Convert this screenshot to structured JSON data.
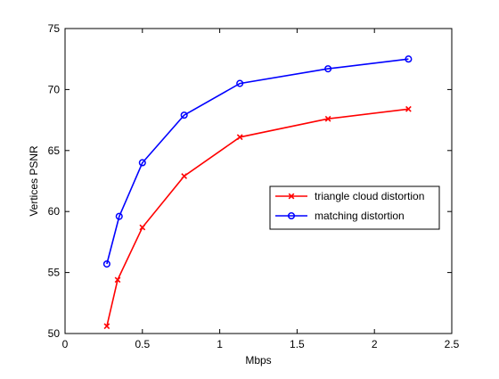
{
  "chart_data": {
    "type": "line",
    "title": "",
    "xlabel": "Mbps",
    "ylabel": "Vertices PSNR",
    "xlim": [
      0,
      2.5
    ],
    "ylim": [
      50,
      75
    ],
    "xticks": [
      0,
      0.5,
      1,
      1.5,
      2,
      2.5
    ],
    "xtick_labels": [
      "0",
      "0.5",
      "1",
      "1.5",
      "2",
      "2.5"
    ],
    "yticks": [
      50,
      55,
      60,
      65,
      70,
      75
    ],
    "ytick_labels": [
      "50",
      "55",
      "60",
      "65",
      "70",
      "75"
    ],
    "grid": false,
    "legend_position": "center-right",
    "series": [
      {
        "name": "triangle cloud distortion",
        "color": "#ff0000",
        "marker": "x",
        "x": [
          0.27,
          0.34,
          0.5,
          0.77,
          1.13,
          1.7,
          2.22
        ],
        "y": [
          50.6,
          54.4,
          58.7,
          62.9,
          66.1,
          67.6,
          68.4
        ]
      },
      {
        "name": "matching distortion",
        "color": "#0000ff",
        "marker": "o",
        "x": [
          0.27,
          0.35,
          0.5,
          0.77,
          1.13,
          1.7,
          2.22
        ],
        "y": [
          55.7,
          59.6,
          64.0,
          67.9,
          70.5,
          71.7,
          72.5
        ]
      }
    ]
  }
}
